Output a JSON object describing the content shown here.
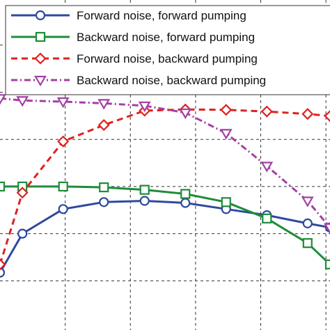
{
  "chart_data": {
    "type": "line",
    "title": "",
    "xlabel": "",
    "ylabel": "",
    "xlim": [
      0.0,
      8.1
    ],
    "ylim": [
      0.0,
      8.05
    ],
    "grid": true,
    "legend_position": "top-left",
    "x_grid": [
      1.6,
      3.2,
      4.8,
      6.4,
      8.0
    ],
    "y_grid": [
      1.2,
      2.35,
      3.5,
      4.65,
      5.8,
      6.95
    ],
    "series": [
      {
        "name": "Forward noise, forward pumping",
        "color": "#2e4a9e",
        "dash": "solid",
        "marker": "circle",
        "x": [
          0.0,
          0.55,
          1.55,
          2.55,
          3.55,
          4.55,
          5.55,
          6.55,
          7.55,
          8.1
        ],
        "y": [
          1.4,
          2.35,
          2.95,
          3.12,
          3.15,
          3.1,
          2.95,
          2.8,
          2.6,
          2.5
        ]
      },
      {
        "name": "Backward noise, forward pumping",
        "color": "#1e8c3a",
        "dash": "solid",
        "marker": "square",
        "x": [
          0.0,
          0.55,
          1.55,
          2.55,
          3.55,
          4.55,
          5.55,
          6.55,
          7.55,
          8.1
        ],
        "y": [
          3.5,
          3.5,
          3.5,
          3.48,
          3.42,
          3.32,
          3.12,
          2.72,
          2.12,
          1.6
        ]
      },
      {
        "name": "Forward noise, backward pumping",
        "color": "#e02020",
        "dash": "dashed",
        "marker": "diamond",
        "x": [
          0.0,
          0.55,
          1.55,
          2.55,
          3.55,
          4.55,
          5.55,
          6.55,
          7.55,
          8.1
        ],
        "y": [
          1.6,
          3.35,
          4.6,
          5.0,
          5.35,
          5.38,
          5.37,
          5.33,
          5.27,
          5.22
        ]
      },
      {
        "name": "Backward noise, backward pumping",
        "color": "#a43fa4",
        "dash": "dashdot",
        "marker": "triangle-down",
        "x": [
          0.0,
          0.55,
          1.55,
          2.55,
          3.55,
          4.55,
          5.55,
          6.55,
          7.55,
          8.1
        ],
        "y": [
          5.65,
          5.6,
          5.57,
          5.53,
          5.47,
          5.3,
          4.8,
          4.0,
          3.15,
          2.5
        ]
      }
    ]
  }
}
